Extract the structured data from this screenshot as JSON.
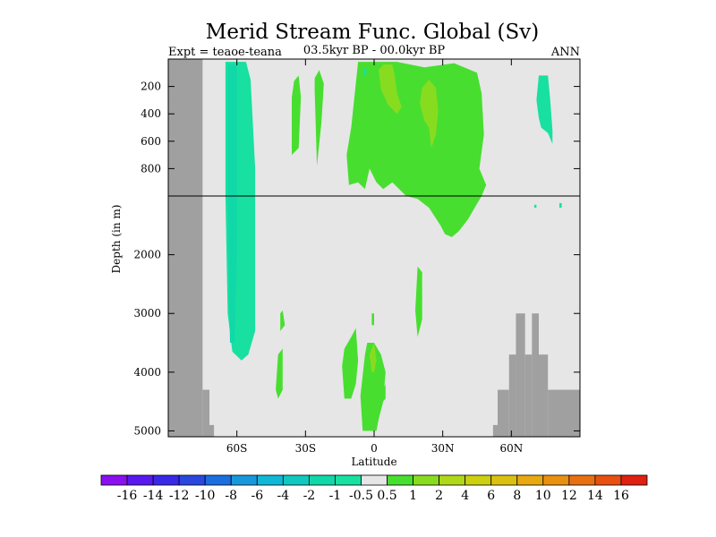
{
  "chart_data": {
    "type": "heatmap",
    "title": "Merid Stream Func. Global (Sv)",
    "subtitle_left": "Expt = teaoe-teana",
    "subtitle_center": "03.5kyr BP - 00.0kyr BP",
    "subtitle_right": "ANN",
    "xlabel": "Latitude",
    "ylabel": "Depth (in m)",
    "xlim": [
      -90,
      90
    ],
    "ylim": [
      5100,
      0
    ],
    "depth_axis": "piecewise linear: 0-1000 m upper panel, 1000-5100 m lower panel",
    "split_depth": 1000,
    "x_ticks": [
      {
        "value": -60,
        "label": "60S"
      },
      {
        "value": -30,
        "label": "30S"
      },
      {
        "value": 0,
        "label": "0"
      },
      {
        "value": 30,
        "label": "30N"
      },
      {
        "value": 60,
        "label": "60N"
      }
    ],
    "y_ticks": [
      {
        "value": 200,
        "label": "200"
      },
      {
        "value": 400,
        "label": "400"
      },
      {
        "value": 600,
        "label": "600"
      },
      {
        "value": 800,
        "label": "800"
      },
      {
        "value": 2000,
        "label": "2000"
      },
      {
        "value": 3000,
        "label": "3000"
      },
      {
        "value": 4000,
        "label": "4000"
      },
      {
        "value": 5000,
        "label": "5000"
      }
    ],
    "colorbar": {
      "labels": [
        "-16",
        "-14",
        "-12",
        "-10",
        "-8",
        "-6",
        "-4",
        "-2",
        "-1",
        "-0.5",
        "0.5",
        "1",
        "2",
        "4",
        "6",
        "8",
        "10",
        "12",
        "14",
        "16"
      ],
      "colors": [
        "#8a10f0",
        "#5a18f0",
        "#3a28e8",
        "#2a48e0",
        "#1a6ee0",
        "#1898dc",
        "#10b8d8",
        "#10c8c0",
        "#10d8a8",
        "#18e0a0",
        "#e6e6e6",
        "#48de30",
        "#88dc20",
        "#b0d818",
        "#ccd010",
        "#dcc010",
        "#e8a810",
        "#e89010",
        "#e87010",
        "#e85010",
        "#e02010"
      ]
    },
    "background_color": "#e6e6e6",
    "land_color": "#a0a0a0",
    "bathymetry": [
      {
        "x": [
          -90,
          -75
        ],
        "depth_top": 0,
        "depth_bottom": 5100
      },
      {
        "x": [
          -75,
          -72
        ],
        "depth_top": 4300,
        "depth_bottom": 5100
      },
      {
        "x": [
          -72,
          -70
        ],
        "depth_top": 4900,
        "depth_bottom": 5100
      },
      {
        "x": [
          52,
          54
        ],
        "depth_top": 4900,
        "depth_bottom": 5100
      },
      {
        "x": [
          54,
          59
        ],
        "depth_top": 4300,
        "depth_bottom": 5100
      },
      {
        "x": [
          59,
          62
        ],
        "depth_top": 3700,
        "depth_bottom": 5100
      },
      {
        "x": [
          62,
          66
        ],
        "depth_top": 3000,
        "depth_bottom": 5100
      },
      {
        "x": [
          66,
          69
        ],
        "depth_top": 3700,
        "depth_bottom": 5100
      },
      {
        "x": [
          69,
          72
        ],
        "depth_top": 3000,
        "depth_bottom": 5100
      },
      {
        "x": [
          72,
          76
        ],
        "depth_top": 3700,
        "depth_bottom": 5100
      },
      {
        "x": [
          76,
          90
        ],
        "depth_top": 4300,
        "depth_bottom": 5100
      }
    ],
    "regions": [
      {
        "value_range": "-1 to -0.5",
        "color": "#18e0a0",
        "polygon": [
          [
            -65,
            20
          ],
          [
            -56,
            20
          ],
          [
            -54,
            150
          ],
          [
            -52,
            800
          ],
          [
            -52,
            3300
          ],
          [
            -55,
            3700
          ],
          [
            -58,
            3800
          ],
          [
            -62,
            3650
          ],
          [
            -64,
            3000
          ],
          [
            -65,
            1000
          ],
          [
            -65,
            200
          ]
        ]
      },
      {
        "value_range": "-2 to -1",
        "color": "#10d8a8",
        "polygon": [
          [
            -64,
            40
          ],
          [
            -60,
            40
          ],
          [
            -60,
            2000
          ],
          [
            -61,
            3500
          ],
          [
            -63,
            3500
          ],
          [
            -64,
            1000
          ]
        ]
      },
      {
        "value_range": "0.5 to 1",
        "color": "#48de30",
        "polygon": [
          [
            -36,
            700
          ],
          [
            -36,
            280
          ],
          [
            -35,
            160
          ],
          [
            -33,
            120
          ],
          [
            -32,
            280
          ],
          [
            -33,
            650
          ]
        ]
      },
      {
        "value_range": "0.5 to 1",
        "color": "#48de30",
        "polygon": [
          [
            -26,
            230
          ],
          [
            -26,
            140
          ],
          [
            -24,
            80
          ],
          [
            -22,
            180
          ],
          [
            -23,
            460
          ],
          [
            -25,
            780
          ]
        ]
      },
      {
        "value_range": "0.5 to 1",
        "color": "#48de30",
        "polygon": [
          [
            -11,
            920
          ],
          [
            -12,
            700
          ],
          [
            -10,
            500
          ],
          [
            -7,
            20
          ],
          [
            3,
            20
          ],
          [
            10,
            20
          ],
          [
            22,
            60
          ],
          [
            35,
            30
          ],
          [
            45,
            100
          ],
          [
            47,
            250
          ],
          [
            48,
            550
          ],
          [
            46,
            800
          ],
          [
            49,
            920
          ],
          [
            47,
            1000
          ],
          [
            44,
            1200
          ],
          [
            41,
            1400
          ],
          [
            37,
            1600
          ],
          [
            34,
            1700
          ],
          [
            31,
            1650
          ],
          [
            29,
            1500
          ],
          [
            24,
            1200
          ],
          [
            19,
            1050
          ],
          [
            14,
            1000
          ],
          [
            8,
            900
          ],
          [
            4,
            950
          ],
          [
            1,
            900
          ],
          [
            -2,
            800
          ],
          [
            -4,
            950
          ],
          [
            -7,
            900
          ]
        ]
      },
      {
        "value_range": "1 to 2",
        "color": "#88dc20",
        "polygon": [
          [
            2,
            80
          ],
          [
            4,
            40
          ],
          [
            8,
            40
          ],
          [
            9,
            120
          ],
          [
            10,
            250
          ],
          [
            12,
            350
          ],
          [
            10,
            400
          ],
          [
            6,
            330
          ],
          [
            3,
            220
          ]
        ]
      },
      {
        "value_range": "1 to 2",
        "color": "#88dc20",
        "polygon": [
          [
            20,
            320
          ],
          [
            21,
            210
          ],
          [
            24,
            150
          ],
          [
            27,
            210
          ],
          [
            28,
            380
          ],
          [
            27,
            550
          ],
          [
            25,
            650
          ],
          [
            24,
            500
          ],
          [
            22,
            450
          ]
        ]
      },
      {
        "value_range": "-1 to -0.5",
        "color": "#18e0a0",
        "polygon": [
          [
            72,
            430
          ],
          [
            71,
            300
          ],
          [
            72,
            120
          ],
          [
            76,
            120
          ],
          [
            77,
            300
          ],
          [
            78,
            520
          ],
          [
            78,
            620
          ],
          [
            76,
            540
          ],
          [
            73,
            500
          ]
        ]
      },
      {
        "value_range": "-1 to -0.5",
        "color": "#18e0a0",
        "polygon": [
          [
            -5,
            110
          ],
          [
            -4,
            60
          ],
          [
            -3,
            80
          ],
          [
            -4,
            120
          ]
        ]
      },
      {
        "value_range": "0.5 to 1",
        "color": "#48de30",
        "polygon": [
          [
            -42,
            4450
          ],
          [
            -43,
            4300
          ],
          [
            -42,
            3700
          ],
          [
            -40,
            3600
          ],
          [
            -40,
            4300
          ]
        ]
      },
      {
        "value_range": "0.5 to 1",
        "color": "#48de30",
        "polygon": [
          [
            -41,
            3300
          ],
          [
            -41,
            3000
          ],
          [
            -40,
            2950
          ],
          [
            -39,
            3200
          ]
        ]
      },
      {
        "value_range": "0.5 to 1",
        "color": "#48de30",
        "polygon": [
          [
            -13,
            4450
          ],
          [
            -14,
            3900
          ],
          [
            -13,
            3600
          ],
          [
            -10,
            3400
          ],
          [
            -8,
            3250
          ],
          [
            -7,
            3800
          ],
          [
            -8,
            4200
          ],
          [
            -10,
            4450
          ]
        ]
      },
      {
        "value_range": "0.5 to 1",
        "color": "#48de30",
        "polygon": [
          [
            -5,
            5000
          ],
          [
            -6,
            4400
          ],
          [
            -4,
            3700
          ],
          [
            -3,
            3500
          ],
          [
            0,
            3500
          ],
          [
            3,
            3700
          ],
          [
            5,
            4000
          ],
          [
            4,
            4500
          ],
          [
            2,
            4800
          ],
          [
            1,
            5000
          ]
        ]
      },
      {
        "value_range": "1 to 2",
        "color": "#88dc20",
        "polygon": [
          [
            -1,
            4000
          ],
          [
            -2,
            3700
          ],
          [
            0,
            3500
          ],
          [
            1,
            3800
          ],
          [
            0,
            4000
          ]
        ]
      },
      {
        "value_range": "0.5 to 1",
        "color": "#48de30",
        "polygon": [
          [
            19,
            3400
          ],
          [
            18,
            2950
          ],
          [
            19,
            2200
          ],
          [
            21,
            2300
          ],
          [
            21,
            3100
          ]
        ]
      },
      {
        "value_range": "0.5 to 1",
        "color": "#48de30",
        "polygon": [
          [
            -1,
            3200
          ],
          [
            -1,
            3000
          ],
          [
            0,
            3000
          ],
          [
            0,
            3200
          ]
        ]
      },
      {
        "value_range": "0.5 to 1",
        "color": "#48de30",
        "polygon": [
          [
            4,
            4500
          ],
          [
            4,
            4300
          ],
          [
            5,
            4200
          ],
          [
            5,
            4450
          ]
        ]
      },
      {
        "value_range": "-1 to -0.5",
        "color": "#18e0a0",
        "polygon": [
          [
            70,
            1200
          ],
          [
            70,
            1150
          ],
          [
            71,
            1150
          ],
          [
            71,
            1200
          ]
        ]
      },
      {
        "value_range": "-1 to -0.5",
        "color": "#18e0a0",
        "polygon": [
          [
            81,
            1200
          ],
          [
            81,
            1120
          ],
          [
            82,
            1120
          ],
          [
            82,
            1200
          ]
        ]
      }
    ]
  }
}
